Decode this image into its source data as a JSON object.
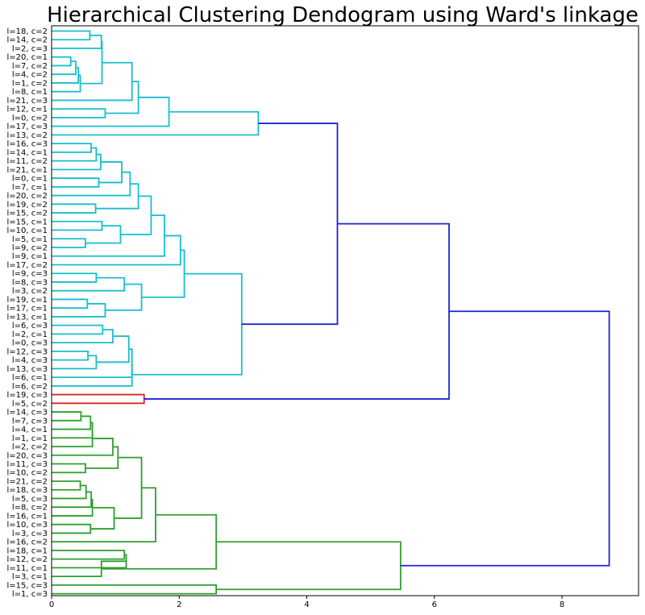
{
  "chart_data": {
    "type": "dendrogram",
    "orientation": "left-to-right",
    "title": "Hierarchical Clustering Dendogram using Ward's linkage",
    "xlabel": "",
    "ylabel": "",
    "xlim": [
      0,
      9.2
    ],
    "x_ticks": [
      "0",
      "2",
      "4",
      "6",
      "8"
    ],
    "grid": false,
    "colors": {
      "cyan": "#17becf",
      "red": "#d62728",
      "green": "#2ca02c",
      "blue": "#1f24d0"
    },
    "leaf_labels": [
      "l=18, c=2",
      "l=14, c=2",
      "l=2, c=3",
      "l=20, c=1",
      "l=7, c=2",
      "l=4, c=2",
      "l=1, c=2",
      "l=8, c=1",
      "l=21, c=3",
      "l=12, c=1",
      "l=0, c=2",
      "l=17, c=3",
      "l=13, c=2",
      "l=16, c=3",
      "l=14, c=1",
      "l=11, c=2",
      "l=21, c=1",
      "l=0, c=1",
      "l=7, c=1",
      "l=20, c=2",
      "l=19, c=2",
      "l=15, c=2",
      "l=15, c=1",
      "l=10, c=1",
      "l=5, c=1",
      "l=9, c=2",
      "l=9, c=1",
      "l=17, c=2",
      "l=9, c=3",
      "l=8, c=3",
      "l=3, c=2",
      "l=19, c=1",
      "l=17, c=1",
      "l=13, c=1",
      "l=6, c=3",
      "l=2, c=1",
      "l=0, c=3",
      "l=12, c=3",
      "l=4, c=3",
      "l=13, c=3",
      "l=6, c=1",
      "l=6, c=2",
      "l=19, c=3",
      "l=5, c=2",
      "l=14, c=3",
      "l=7, c=3",
      "l=4, c=1",
      "l=1, c=1",
      "l=2, c=2",
      "l=20, c=3",
      "l=11, c=3",
      "l=10, c=2",
      "l=21, c=2",
      "l=18, c=3",
      "l=5, c=3",
      "l=8, c=2",
      "l=16, c=1",
      "l=10, c=3",
      "l=3, c=3",
      "l=16, c=2",
      "l=18, c=1",
      "l=12, c=2",
      "l=11, c=1",
      "l=3, c=1",
      "l=15, c=3",
      "l=1, c=3"
    ],
    "merges": [
      {
        "id": "c1",
        "a": 0,
        "b": 1,
        "h": 0.6,
        "color": "cyan"
      },
      {
        "id": "c2",
        "a": "c1",
        "b": 2,
        "h": 0.78,
        "color": "cyan"
      },
      {
        "id": "c3",
        "a": 3,
        "b": 4,
        "h": 0.3,
        "color": "cyan"
      },
      {
        "id": "c4",
        "a": "c3",
        "b": 5,
        "h": 0.38,
        "color": "cyan"
      },
      {
        "id": "c5",
        "a": "c4",
        "b": 6,
        "h": 0.42,
        "color": "cyan"
      },
      {
        "id": "c6",
        "a": "c5",
        "b": 7,
        "h": 0.45,
        "color": "cyan"
      },
      {
        "id": "c7",
        "a": "c2",
        "b": "c6",
        "h": 0.79,
        "color": "cyan"
      },
      {
        "id": "c8",
        "a": "c7",
        "b": 8,
        "h": 1.26,
        "color": "cyan"
      },
      {
        "id": "c9",
        "a": 9,
        "b": 10,
        "h": 0.84,
        "color": "cyan"
      },
      {
        "id": "c10",
        "a": "c8",
        "b": "c9",
        "h": 1.36,
        "color": "cyan"
      },
      {
        "id": "c11",
        "a": "c10",
        "b": 11,
        "h": 1.84,
        "color": "cyan"
      },
      {
        "id": "c12",
        "a": "c11",
        "b": 12,
        "h": 3.24,
        "color": "cyan"
      },
      {
        "id": "c13",
        "a": 13,
        "b": 14,
        "h": 0.62,
        "color": "cyan"
      },
      {
        "id": "c14",
        "a": "c13",
        "b": 15,
        "h": 0.7,
        "color": "cyan"
      },
      {
        "id": "c15",
        "a": "c14",
        "b": 16,
        "h": 0.77,
        "color": "cyan"
      },
      {
        "id": "c16",
        "a": 17,
        "b": 18,
        "h": 0.74,
        "color": "cyan"
      },
      {
        "id": "c17",
        "a": "c15",
        "b": "c16",
        "h": 1.1,
        "color": "cyan"
      },
      {
        "id": "c18",
        "a": "c17",
        "b": 19,
        "h": 1.23,
        "color": "cyan"
      },
      {
        "id": "c19",
        "a": 20,
        "b": 21,
        "h": 0.69,
        "color": "cyan"
      },
      {
        "id": "c20",
        "a": "c18",
        "b": "c19",
        "h": 1.36,
        "color": "cyan"
      },
      {
        "id": "c21",
        "a": 22,
        "b": 23,
        "h": 0.79,
        "color": "cyan"
      },
      {
        "id": "c22",
        "a": 24,
        "b": 25,
        "h": 0.53,
        "color": "cyan"
      },
      {
        "id": "c23",
        "a": "c21",
        "b": "c22",
        "h": 1.08,
        "color": "cyan"
      },
      {
        "id": "c24",
        "a": "c20",
        "b": "c23",
        "h": 1.56,
        "color": "cyan"
      },
      {
        "id": "c25",
        "a": "c24",
        "b": 26,
        "h": 1.77,
        "color": "cyan"
      },
      {
        "id": "c26",
        "a": "c25",
        "b": 27,
        "h": 2.02,
        "color": "cyan"
      },
      {
        "id": "c27",
        "a": 28,
        "b": 29,
        "h": 0.7,
        "color": "cyan"
      },
      {
        "id": "c28",
        "a": "c27",
        "b": 30,
        "h": 1.14,
        "color": "cyan"
      },
      {
        "id": "c29",
        "a": 31,
        "b": 32,
        "h": 0.56,
        "color": "cyan"
      },
      {
        "id": "c30",
        "a": "c29",
        "b": 33,
        "h": 0.84,
        "color": "cyan"
      },
      {
        "id": "c31",
        "a": "c28",
        "b": "c30",
        "h": 1.41,
        "color": "cyan"
      },
      {
        "id": "c32",
        "a": "c26",
        "b": "c31",
        "h": 2.08,
        "color": "cyan"
      },
      {
        "id": "c33",
        "a": 34,
        "b": 35,
        "h": 0.8,
        "color": "cyan"
      },
      {
        "id": "c34",
        "a": "c33",
        "b": 36,
        "h": 0.96,
        "color": "cyan"
      },
      {
        "id": "c35",
        "a": 37,
        "b": 38,
        "h": 0.57,
        "color": "cyan"
      },
      {
        "id": "c36",
        "a": "c35",
        "b": 39,
        "h": 0.7,
        "color": "cyan"
      },
      {
        "id": "c37",
        "a": "c34",
        "b": "c36",
        "h": 1.21,
        "color": "cyan"
      },
      {
        "id": "c38",
        "a": "c37",
        "b": 40,
        "h": 1.26,
        "color": "cyan"
      },
      {
        "id": "c39",
        "a": "c38",
        "b": 41,
        "h": 1.26,
        "color": "cyan"
      },
      {
        "id": "c40",
        "a": "c32",
        "b": "c39",
        "h": 2.98,
        "color": "cyan"
      },
      {
        "id": "c41",
        "a": "c12",
        "b": "c40",
        "h": 4.48,
        "color": "blue"
      },
      {
        "id": "c42",
        "a": 42,
        "b": 43,
        "h": 1.45,
        "color": "red"
      },
      {
        "id": "c43",
        "a": "c41",
        "b": "c42",
        "h": 6.23,
        "color": "blue"
      },
      {
        "id": "c44",
        "a": 44,
        "b": 45,
        "h": 0.46,
        "color": "green"
      },
      {
        "id": "c45",
        "a": "c44",
        "b": 46,
        "h": 0.61,
        "color": "green"
      },
      {
        "id": "c46",
        "a": "c45",
        "b": 47,
        "h": 0.64,
        "color": "green"
      },
      {
        "id": "c47",
        "a": "c46",
        "b": 48,
        "h": 0.64,
        "color": "green"
      },
      {
        "id": "c48",
        "a": "c47",
        "b": 49,
        "h": 0.96,
        "color": "green"
      },
      {
        "id": "c49",
        "a": 50,
        "b": 51,
        "h": 0.53,
        "color": "green"
      },
      {
        "id": "c50",
        "a": "c48",
        "b": "c49",
        "h": 1.04,
        "color": "green"
      },
      {
        "id": "c51",
        "a": 52,
        "b": 53,
        "h": 0.45,
        "color": "green"
      },
      {
        "id": "c52",
        "a": "c51",
        "b": 54,
        "h": 0.54,
        "color": "green"
      },
      {
        "id": "c53",
        "a": "c52",
        "b": 55,
        "h": 0.62,
        "color": "green"
      },
      {
        "id": "c54",
        "a": "c53",
        "b": 56,
        "h": 0.64,
        "color": "green"
      },
      {
        "id": "c55",
        "a": 57,
        "b": 58,
        "h": 0.61,
        "color": "green"
      },
      {
        "id": "c56",
        "a": "c54",
        "b": "c55",
        "h": 0.98,
        "color": "green"
      },
      {
        "id": "c57",
        "a": "c50",
        "b": "c56",
        "h": 1.41,
        "color": "green"
      },
      {
        "id": "c58",
        "a": "c57",
        "b": 59,
        "h": 1.63,
        "color": "green"
      },
      {
        "id": "c59",
        "a": 60,
        "b": 61,
        "h": 1.14,
        "color": "green"
      },
      {
        "id": "c60",
        "a": "c59",
        "b": 62,
        "h": 1.17,
        "color": "green"
      },
      {
        "id": "c61",
        "a": "c60",
        "b": 63,
        "h": 0.78,
        "color": "green"
      },
      {
        "id": "c62",
        "a": "c58",
        "b": "c61",
        "h": 2.58,
        "color": "green"
      },
      {
        "id": "c63",
        "a": 64,
        "b": 65,
        "h": 2.58,
        "color": "green"
      },
      {
        "id": "c64",
        "a": "c62",
        "b": "c63",
        "h": 5.47,
        "color": "green"
      },
      {
        "id": "c65",
        "a": "c43",
        "b": "c64",
        "h": 8.74,
        "color": "blue"
      }
    ]
  }
}
